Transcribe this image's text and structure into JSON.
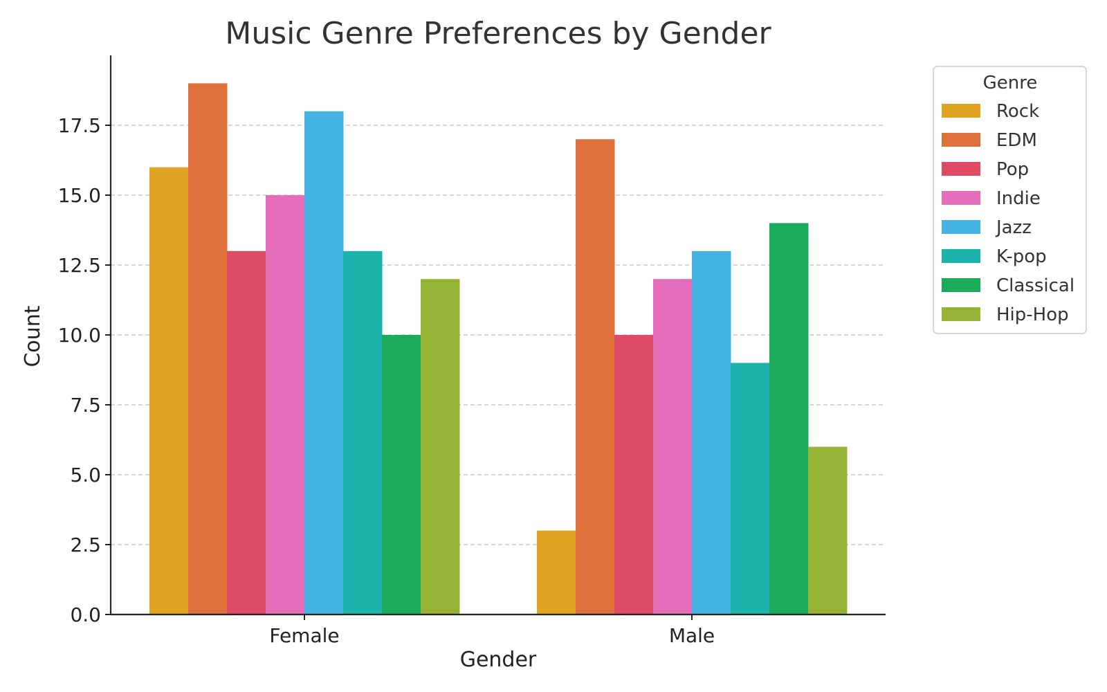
{
  "chart_data": {
    "type": "bar",
    "title": "Music Genre Preferences by Gender",
    "xlabel": "Gender",
    "ylabel": "Count",
    "categories": [
      "Female",
      "Male"
    ],
    "ylim": [
      0,
      20
    ],
    "yticks": [
      "0.0",
      "2.5",
      "5.0",
      "7.5",
      "10.0",
      "12.5",
      "15.0",
      "17.5"
    ],
    "yticks_values": [
      0,
      2.5,
      5,
      7.5,
      10,
      12.5,
      15,
      17.5
    ],
    "grid": "y-dashed",
    "legend": {
      "title": "Genre",
      "placement": "outside-top-right"
    },
    "series": [
      {
        "name": "Rock",
        "color": "#E1A323",
        "values": [
          16,
          3
        ]
      },
      {
        "name": "EDM",
        "color": "#DD713B",
        "values": [
          19,
          17
        ]
      },
      {
        "name": "Pop",
        "color": "#DD4B64",
        "values": [
          13,
          10
        ]
      },
      {
        "name": "Indie",
        "color": "#E46EBC",
        "values": [
          15,
          12
        ]
      },
      {
        "name": "Jazz",
        "color": "#44B3E3",
        "values": [
          18,
          13
        ]
      },
      {
        "name": "K-pop",
        "color": "#1BB3AA",
        "values": [
          13,
          9
        ]
      },
      {
        "name": "Classical",
        "color": "#1BAA59",
        "values": [
          10,
          14
        ]
      },
      {
        "name": "Hip-Hop",
        "color": "#95B334",
        "values": [
          12,
          6
        ]
      }
    ]
  }
}
